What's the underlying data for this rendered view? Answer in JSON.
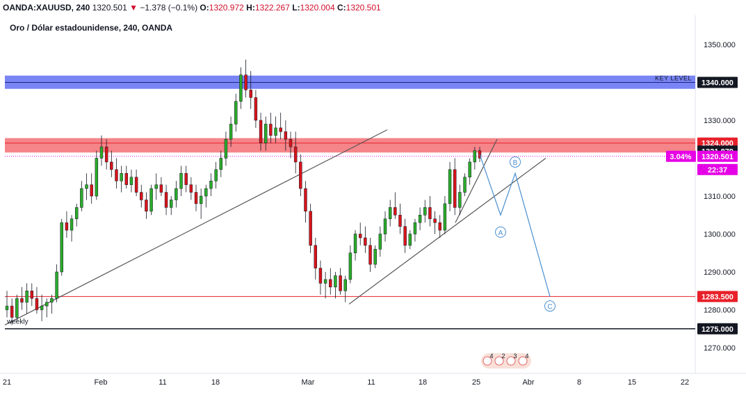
{
  "header": {
    "symbol": "OANDA:XAUUSD, 240",
    "last": "1320.501",
    "change": "−1.378 (−0.1%)",
    "o_label": "O:",
    "o_value": "1320.972",
    "h_label": "H:",
    "h_value": "1322.267",
    "l_label": "L:",
    "l_value": "1320.004",
    "c_label": "C:",
    "c_value": "1320.501",
    "down_arrow": "▼"
  },
  "chart_title": "Oro / Dólar estadounidense, 240, OANDA",
  "chart_data": {
    "type": "candlestick",
    "ylim": [
      1262,
      1356
    ],
    "y_ticks": [
      "1350.000",
      "1330.000",
      "1310.000",
      "1300.000",
      "1290.000",
      "1280.000",
      "1270.000"
    ],
    "x_ticks": [
      "21",
      "Feb",
      "11",
      "18",
      "Mar",
      "11",
      "18",
      "25",
      "Abr",
      "8",
      "15",
      "22"
    ],
    "price_labels": [
      {
        "text": "1340.000",
        "value": 1340,
        "color": "#131722"
      },
      {
        "text": "1324.000",
        "value": 1324,
        "color": "#e8202a"
      },
      {
        "text": "1321.879",
        "value": 1321.879,
        "color": "#131722"
      },
      {
        "text": "1320.501",
        "value": 1320.501,
        "color": "#e600e6"
      },
      {
        "text": "22:37",
        "value": 1317.5,
        "color": "#e600e6"
      },
      {
        "text": "1283.500",
        "value": 1283.5,
        "color": "#e8202a"
      },
      {
        "text": "1275.000",
        "value": 1275,
        "color": "#131722"
      }
    ],
    "pct_label": "3.04%",
    "zones": [
      {
        "name": "key-level",
        "from": 1338.3,
        "to": 1341.8,
        "color": "#4c5cf2",
        "label": "KEY LEVEL"
      },
      {
        "name": "resistance",
        "from": 1321.5,
        "to": 1325.3,
        "color": "#f15c62"
      }
    ],
    "hlines": [
      {
        "value": 1340,
        "color": "#1a237e"
      },
      {
        "value": 1324,
        "color": "#e8202a"
      },
      {
        "value": 1283.5,
        "color": "#e8202a"
      },
      {
        "value": 1275,
        "color": "#131722"
      },
      {
        "value": 1320.501,
        "color": "#e600e6",
        "dotted": true
      }
    ],
    "annotations": {
      "weekly": "weekly",
      "wave_points": [
        "A",
        "B",
        "C"
      ]
    },
    "events": [
      "4",
      "2",
      "3",
      "4"
    ],
    "candles": [
      [
        1280,
        1285,
        1278,
        1281
      ],
      [
        1281,
        1283,
        1276,
        1278
      ],
      [
        1278,
        1284,
        1277,
        1283
      ],
      [
        1283,
        1286,
        1280,
        1282
      ],
      [
        1282,
        1287,
        1279,
        1285
      ],
      [
        1285,
        1287,
        1281,
        1283
      ],
      [
        1283,
        1286,
        1279,
        1280
      ],
      [
        1280,
        1284,
        1277,
        1281
      ],
      [
        1281,
        1283,
        1278,
        1282
      ],
      [
        1282,
        1284,
        1279,
        1283
      ],
      [
        1283,
        1292,
        1282,
        1290
      ],
      [
        1290,
        1304,
        1289,
        1303
      ],
      [
        1303,
        1306,
        1299,
        1301
      ],
      [
        1301,
        1305,
        1298,
        1304
      ],
      [
        1304,
        1308,
        1302,
        1307
      ],
      [
        1307,
        1314,
        1306,
        1312
      ],
      [
        1312,
        1316,
        1309,
        1313
      ],
      [
        1313,
        1316,
        1308,
        1310
      ],
      [
        1310,
        1322,
        1309,
        1320
      ],
      [
        1320,
        1326,
        1318,
        1323
      ],
      [
        1323,
        1325,
        1317,
        1319
      ],
      [
        1319,
        1322,
        1315,
        1317
      ],
      [
        1317,
        1320,
        1312,
        1314
      ],
      [
        1314,
        1318,
        1311,
        1316
      ],
      [
        1316,
        1318,
        1312,
        1313
      ],
      [
        1313,
        1317,
        1311,
        1315
      ],
      [
        1315,
        1317,
        1310,
        1311
      ],
      [
        1311,
        1313,
        1307,
        1309
      ],
      [
        1309,
        1311,
        1304,
        1306
      ],
      [
        1306,
        1313,
        1305,
        1312
      ],
      [
        1312,
        1316,
        1309,
        1313
      ],
      [
        1313,
        1315,
        1310,
        1311
      ],
      [
        1311,
        1313,
        1305,
        1307
      ],
      [
        1307,
        1310,
        1305,
        1309
      ],
      [
        1309,
        1314,
        1307,
        1312
      ],
      [
        1312,
        1318,
        1310,
        1316
      ],
      [
        1316,
        1318,
        1311,
        1313
      ],
      [
        1313,
        1315,
        1309,
        1311
      ],
      [
        1311,
        1313,
        1306,
        1308
      ],
      [
        1308,
        1312,
        1304,
        1310
      ],
      [
        1310,
        1313,
        1307,
        1312
      ],
      [
        1312,
        1316,
        1310,
        1314
      ],
      [
        1314,
        1319,
        1312,
        1317
      ],
      [
        1317,
        1322,
        1315,
        1320
      ],
      [
        1320,
        1327,
        1318,
        1325
      ],
      [
        1325,
        1331,
        1323,
        1329
      ],
      [
        1329,
        1337,
        1327,
        1335
      ],
      [
        1335,
        1344,
        1333,
        1342
      ],
      [
        1342,
        1346,
        1336,
        1338
      ],
      [
        1338,
        1343,
        1333,
        1336
      ],
      [
        1336,
        1338,
        1328,
        1330
      ],
      [
        1330,
        1332,
        1322,
        1324
      ],
      [
        1324,
        1331,
        1322,
        1329
      ],
      [
        1329,
        1332,
        1324,
        1326
      ],
      [
        1326,
        1331,
        1324,
        1328
      ],
      [
        1328,
        1332,
        1325,
        1327
      ],
      [
        1327,
        1330,
        1322,
        1325
      ],
      [
        1325,
        1327,
        1320,
        1323
      ],
      [
        1323,
        1327,
        1316,
        1319
      ],
      [
        1319,
        1321,
        1310,
        1312
      ],
      [
        1312,
        1314,
        1303,
        1306
      ],
      [
        1306,
        1308,
        1295,
        1297
      ],
      [
        1297,
        1299,
        1288,
        1291
      ],
      [
        1291,
        1293,
        1284,
        1287
      ],
      [
        1287,
        1290,
        1283,
        1288
      ],
      [
        1288,
        1291,
        1284,
        1286
      ],
      [
        1286,
        1290,
        1283,
        1289
      ],
      [
        1289,
        1291,
        1284,
        1285
      ],
      [
        1285,
        1289,
        1282,
        1288
      ],
      [
        1288,
        1297,
        1287,
        1295
      ],
      [
        1295,
        1301,
        1293,
        1300
      ],
      [
        1300,
        1303,
        1297,
        1299
      ],
      [
        1299,
        1302,
        1295,
        1297
      ],
      [
        1297,
        1299,
        1290,
        1292
      ],
      [
        1292,
        1297,
        1291,
        1296
      ],
      [
        1296,
        1302,
        1294,
        1300
      ],
      [
        1300,
        1306,
        1298,
        1304
      ],
      [
        1304,
        1309,
        1302,
        1307
      ],
      [
        1307,
        1311,
        1304,
        1305
      ],
      [
        1305,
        1308,
        1300,
        1302
      ],
      [
        1302,
        1304,
        1295,
        1297
      ],
      [
        1297,
        1301,
        1296,
        1300
      ],
      [
        1300,
        1304,
        1298,
        1303
      ],
      [
        1303,
        1307,
        1301,
        1305
      ],
      [
        1305,
        1309,
        1303,
        1307
      ],
      [
        1307,
        1310,
        1302,
        1304
      ],
      [
        1304,
        1306,
        1300,
        1303
      ],
      [
        1303,
        1305,
        1299,
        1301
      ],
      [
        1301,
        1310,
        1300,
        1308
      ],
      [
        1308,
        1319,
        1306,
        1317
      ],
      [
        1317,
        1320,
        1305,
        1307
      ],
      [
        1307,
        1313,
        1305,
        1311
      ],
      [
        1311,
        1316,
        1310,
        1315
      ],
      [
        1315,
        1320,
        1313,
        1319
      ],
      [
        1319,
        1323,
        1317,
        1322
      ],
      [
        1322,
        1323,
        1319,
        1320
      ]
    ],
    "wave_path": [
      [
        1321,
        "last"
      ],
      [
        1305,
        "A"
      ],
      [
        1316,
        "B"
      ],
      [
        1283.5,
        "C"
      ]
    ]
  }
}
